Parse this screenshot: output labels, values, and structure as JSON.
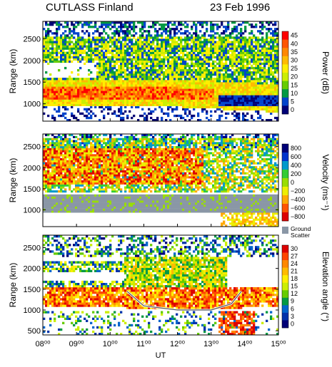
{
  "header": {
    "left_title": "CUTLASS Finland",
    "right_title": "23 Feb 1996"
  },
  "chart_data": [
    {
      "type": "heatmap",
      "panel": "power",
      "ylabel": "Range (km)",
      "ylim": [
        600,
        2900
      ],
      "yticks": [
        1000,
        1500,
        2000,
        2500
      ],
      "xlabel": "UT",
      "xlim": [
        8,
        15
      ],
      "colorbar": {
        "label": "Power (dB)",
        "ticks": [
          "45",
          "40",
          "35",
          "30",
          "25",
          "20",
          "15",
          "10",
          "5",
          "0"
        ],
        "colors": [
          "#ff0000",
          "#ff5500",
          "#ff8800",
          "#ffbb00",
          "#ffee00",
          "#ccee00",
          "#66cc00",
          "#009944",
          "#0044cc",
          "#000077"
        ]
      },
      "features": [
        {
          "name": "high power band",
          "ut_start": 8.0,
          "ut_end": 13.0,
          "range_low": 1100,
          "range_high": 1400,
          "level": "35-45"
        },
        {
          "name": "scatter region",
          "ut_start": 8.0,
          "ut_end": 15.0,
          "range_low": 1000,
          "range_high": 2800,
          "level": "5-30"
        },
        {
          "name": "data gap",
          "ut_start": 8.0,
          "ut_end": 9.6,
          "range_low": 1600,
          "range_high": 1950,
          "level": "none"
        }
      ]
    },
    {
      "type": "heatmap",
      "panel": "velocity",
      "ylabel": "Range (km)",
      "ylim": [
        600,
        2800
      ],
      "yticks": [
        1000,
        1500,
        2000,
        2500
      ],
      "xlabel": "UT",
      "xlim": [
        8,
        15
      ],
      "colorbar": {
        "label": "Velocity (ms⁻¹)",
        "ticks": [
          "800",
          "600",
          "400",
          "200",
          "0",
          "−200",
          "−400",
          "−600",
          "−800"
        ],
        "colors": [
          "#000077",
          "#0033cc",
          "#0099cc",
          "#33cc33",
          "#99dd00",
          "#eeee00",
          "#ffaa00",
          "#ff5500",
          "#dd0000"
        ],
        "ground_scatter_label": "Ground Scatter",
        "ground_scatter_color": "#8a97a6"
      },
      "features": [
        {
          "name": "ground scatter band",
          "ut_start": 8.0,
          "ut_end": 15.0,
          "range_low": 900,
          "range_high": 1400,
          "level": "ground"
        },
        {
          "name": "negative velocity region",
          "ut_start": 8.5,
          "ut_end": 12.5,
          "range_low": 1600,
          "range_high": 2400,
          "level": "-400 to -800"
        },
        {
          "name": "positive velocity edge",
          "ut_start": 13.5,
          "ut_end": 15.0,
          "range_low": 1900,
          "range_high": 2700,
          "level": "200-600"
        }
      ]
    },
    {
      "type": "heatmap",
      "panel": "elevation",
      "ylabel": "Range (km)",
      "ylim": [
        400,
        2800
      ],
      "yticks": [
        500,
        1000,
        1500,
        2000,
        2500
      ],
      "xlabel": "UT",
      "xlim": [
        8,
        15
      ],
      "xticks": [
        "08⁰⁰",
        "09⁰⁰",
        "10⁰⁰",
        "11⁰⁰",
        "12⁰⁰",
        "13⁰⁰",
        "14⁰⁰",
        "15⁰⁰"
      ],
      "colorbar": {
        "label": "Elevation angle (°)",
        "ticks": [
          "30",
          "27",
          "24",
          "21",
          "18",
          "15",
          "12",
          "9",
          "6",
          "3",
          "0"
        ],
        "colors": [
          "#dd0000",
          "#ff4400",
          "#ff8800",
          "#ffbb00",
          "#ffee00",
          "#ccee00",
          "#66cc00",
          "#009944",
          "#0066cc",
          "#0033aa",
          "#000077"
        ]
      },
      "features": [
        {
          "name": "high elevation band",
          "ut_start": 8.0,
          "ut_end": 14.3,
          "range_low": 1000,
          "range_high": 1600,
          "level": "18-30"
        },
        {
          "name": "upper scatter",
          "ut_start": 10.5,
          "ut_end": 13.5,
          "range_low": 1600,
          "range_high": 2300,
          "level": "12-24"
        }
      ],
      "overlay_curve": {
        "ut": [
          10.5,
          11.0,
          12.0,
          13.0,
          13.6,
          13.9
        ],
        "range": [
          1450,
          1100,
          1000,
          1000,
          1150,
          1450
        ]
      }
    }
  ]
}
